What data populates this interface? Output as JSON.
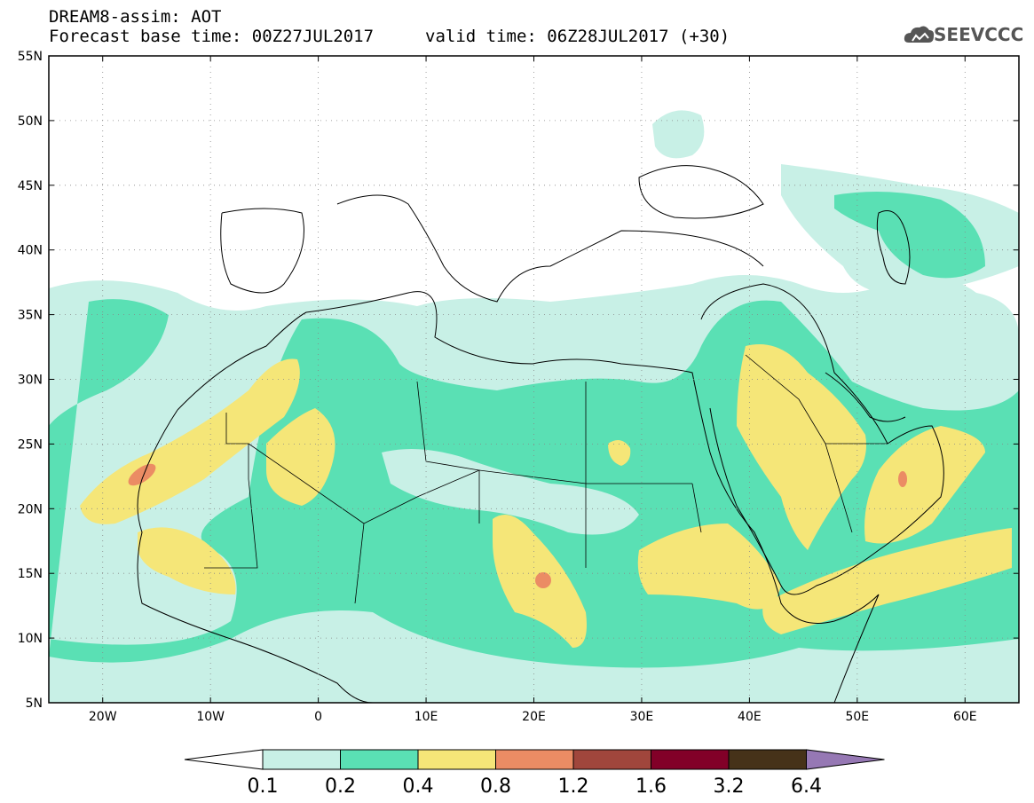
{
  "header": {
    "line1": "DREAM8-assim: AOT",
    "line2": "Forecast base time: 00Z27JUL2017",
    "valid": "valid time: 06Z28JUL2017 (+30)"
  },
  "logo": {
    "text": "SEEVCCC",
    "icon": "cloud-logo-icon"
  },
  "map": {
    "lon_range": [
      -25,
      65
    ],
    "lat_range": [
      5,
      55
    ],
    "lon_ticks": [
      "20W",
      "10W",
      "0",
      "10E",
      "20E",
      "30E",
      "40E",
      "50E",
      "60E"
    ],
    "lat_ticks": [
      "5N",
      "10N",
      "15N",
      "20N",
      "25N",
      "30N",
      "35N",
      "40N",
      "45N",
      "50N",
      "55N"
    ]
  },
  "colorbar": {
    "labels": [
      "0.1",
      "0.2",
      "0.4",
      "0.8",
      "1.2",
      "1.6",
      "3.2",
      "6.4"
    ],
    "colors": [
      "#ffffff",
      "#c8f0e6",
      "#5ae0b4",
      "#f5e678",
      "#eb8c64",
      "#a0463c",
      "#820028",
      "#463219",
      "#9678b4"
    ]
  },
  "colors": {
    "very_light": "#c8f0e6",
    "green": "#5ae0b4",
    "yellow": "#f5e678",
    "orange": "#eb8c64"
  }
}
